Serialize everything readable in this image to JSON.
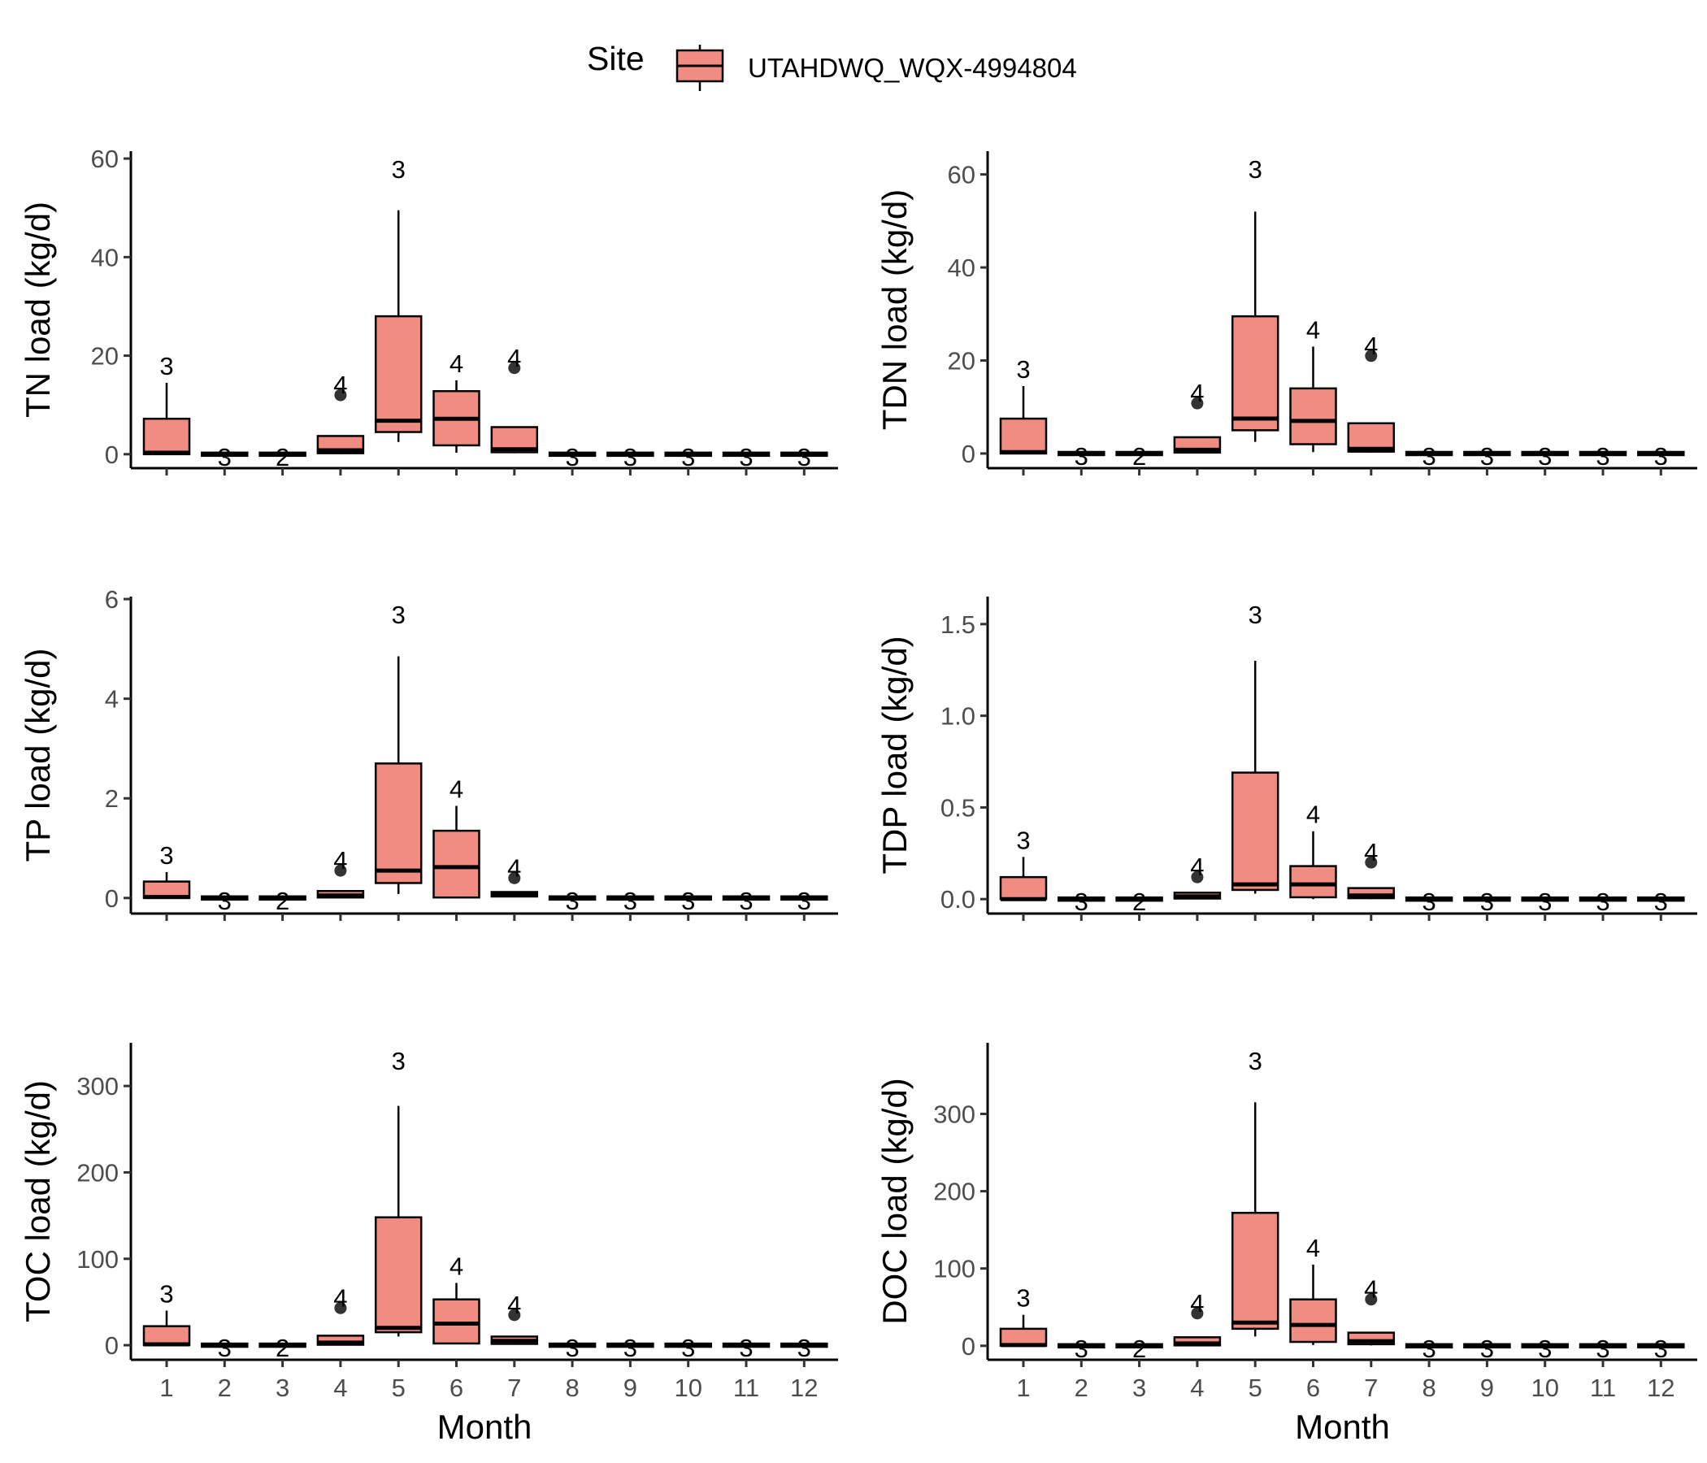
{
  "legend": {
    "title": "Site",
    "entries": [
      {
        "name": "UTAHDWQ_WQX-4994804",
        "color": "#F08C82"
      }
    ]
  },
  "x_title": "Month",
  "chart_data": [
    {
      "type": "box",
      "ylabel": "TN load (kg/d)",
      "xlabel": "",
      "ylim": [
        -2.5,
        61.5
      ],
      "yticks": [
        0,
        20,
        40,
        60
      ],
      "categories": [
        "1",
        "2",
        "3",
        "4",
        "5",
        "6",
        "7",
        "8",
        "9",
        "10",
        "11",
        "12"
      ],
      "boxes": [
        {
          "x": "1",
          "low": 0,
          "q1": 0,
          "median": 0.3,
          "q3": 7.2,
          "high": 14.5,
          "outliers": [],
          "n": "3"
        },
        {
          "x": "2",
          "low": 0,
          "q1": 0,
          "median": 0,
          "q3": 0,
          "high": 0,
          "outliers": [],
          "n": "3"
        },
        {
          "x": "3",
          "low": 0,
          "q1": 0,
          "median": 0,
          "q3": 0,
          "high": 0,
          "outliers": [],
          "n": "2"
        },
        {
          "x": "4",
          "low": 0,
          "q1": 0.2,
          "median": 0.8,
          "q3": 3.7,
          "high": 3.7,
          "outliers": [
            12
          ],
          "n": "4"
        },
        {
          "x": "5",
          "low": 2.5,
          "q1": 4.5,
          "median": 6.8,
          "q3": 28,
          "high": 49.5,
          "outliers": [],
          "n": "3"
        },
        {
          "x": "6",
          "low": 0.3,
          "q1": 1.8,
          "median": 7.2,
          "q3": 12.8,
          "high": 15,
          "outliers": [],
          "n": "4"
        },
        {
          "x": "7",
          "low": 0.2,
          "q1": 0.4,
          "median": 1,
          "q3": 5.5,
          "high": 5.5,
          "outliers": [
            17.5
          ],
          "n": "4"
        },
        {
          "x": "8",
          "low": 0,
          "q1": 0,
          "median": 0,
          "q3": 0,
          "high": 0,
          "outliers": [],
          "n": "3"
        },
        {
          "x": "9",
          "low": 0,
          "q1": 0,
          "median": 0,
          "q3": 0,
          "high": 0,
          "outliers": [],
          "n": "3"
        },
        {
          "x": "10",
          "low": 0,
          "q1": 0,
          "median": 0,
          "q3": 0,
          "high": 0,
          "outliers": [],
          "n": "3"
        },
        {
          "x": "11",
          "low": 0,
          "q1": 0,
          "median": 0,
          "q3": 0,
          "high": 0,
          "outliers": [],
          "n": "3"
        },
        {
          "x": "12",
          "low": 0,
          "q1": 0,
          "median": 0,
          "q3": 0,
          "high": 0,
          "outliers": [],
          "n": "3"
        }
      ]
    },
    {
      "type": "box",
      "ylabel": "TDN load (kg/d)",
      "xlabel": "",
      "ylim": [
        -2.8,
        65
      ],
      "yticks": [
        0,
        20,
        40,
        60
      ],
      "categories": [
        "1",
        "2",
        "3",
        "4",
        "5",
        "6",
        "7",
        "8",
        "9",
        "10",
        "11",
        "12"
      ],
      "boxes": [
        {
          "x": "1",
          "low": 0,
          "q1": 0,
          "median": 0.3,
          "q3": 7.5,
          "high": 14.5,
          "outliers": [],
          "n": "3"
        },
        {
          "x": "2",
          "low": 0,
          "q1": 0,
          "median": 0,
          "q3": 0,
          "high": 0,
          "outliers": [],
          "n": "3"
        },
        {
          "x": "3",
          "low": 0,
          "q1": 0,
          "median": 0,
          "q3": 0,
          "high": 0,
          "outliers": [],
          "n": "2"
        },
        {
          "x": "4",
          "low": 0,
          "q1": 0.2,
          "median": 0.8,
          "q3": 3.5,
          "high": 3.5,
          "outliers": [
            10.8
          ],
          "n": "4"
        },
        {
          "x": "5",
          "low": 2.5,
          "q1": 5,
          "median": 7.5,
          "q3": 29.5,
          "high": 52,
          "outliers": [],
          "n": "3"
        },
        {
          "x": "6",
          "low": 0.3,
          "q1": 2,
          "median": 7,
          "q3": 14,
          "high": 23,
          "outliers": [],
          "n": "4"
        },
        {
          "x": "7",
          "low": 0.2,
          "q1": 0.4,
          "median": 1,
          "q3": 6.5,
          "high": 6.5,
          "outliers": [
            21
          ],
          "n": "4"
        },
        {
          "x": "8",
          "low": 0,
          "q1": 0,
          "median": 0,
          "q3": 0,
          "high": 0,
          "outliers": [],
          "n": "3"
        },
        {
          "x": "9",
          "low": 0,
          "q1": 0,
          "median": 0,
          "q3": 0,
          "high": 0,
          "outliers": [],
          "n": "3"
        },
        {
          "x": "10",
          "low": 0,
          "q1": 0,
          "median": 0,
          "q3": 0,
          "high": 0,
          "outliers": [],
          "n": "3"
        },
        {
          "x": "11",
          "low": 0,
          "q1": 0,
          "median": 0,
          "q3": 0,
          "high": 0,
          "outliers": [],
          "n": "3"
        },
        {
          "x": "12",
          "low": 0,
          "q1": 0,
          "median": 0,
          "q3": 0,
          "high": 0,
          "outliers": [],
          "n": "3"
        }
      ]
    },
    {
      "type": "box",
      "ylabel": "TP load (kg/d)",
      "xlabel": "",
      "ylim": [
        -0.28,
        6.05
      ],
      "yticks": [
        0,
        2,
        4,
        6
      ],
      "categories": [
        "1",
        "2",
        "3",
        "4",
        "5",
        "6",
        "7",
        "8",
        "9",
        "10",
        "11",
        "12"
      ],
      "boxes": [
        {
          "x": "1",
          "low": 0,
          "q1": 0,
          "median": 0.02,
          "q3": 0.33,
          "high": 0.52,
          "outliers": [],
          "n": "3"
        },
        {
          "x": "2",
          "low": 0,
          "q1": 0,
          "median": 0,
          "q3": 0,
          "high": 0,
          "outliers": [],
          "n": "3"
        },
        {
          "x": "3",
          "low": 0,
          "q1": 0,
          "median": 0,
          "q3": 0,
          "high": 0,
          "outliers": [],
          "n": "2"
        },
        {
          "x": "4",
          "low": 0,
          "q1": 0.01,
          "median": 0.05,
          "q3": 0.14,
          "high": 0.14,
          "outliers": [
            0.55
          ],
          "n": "4"
        },
        {
          "x": "5",
          "low": 0.08,
          "q1": 0.3,
          "median": 0.55,
          "q3": 2.7,
          "high": 4.85,
          "outliers": [],
          "n": "3"
        },
        {
          "x": "6",
          "low": 0,
          "q1": 0.01,
          "median": 0.62,
          "q3": 1.35,
          "high": 1.85,
          "outliers": [],
          "n": "4"
        },
        {
          "x": "7",
          "low": 0.02,
          "q1": 0.03,
          "median": 0.07,
          "q3": 0.12,
          "high": 0.12,
          "outliers": [
            0.4
          ],
          "n": "4"
        },
        {
          "x": "8",
          "low": 0,
          "q1": 0,
          "median": 0,
          "q3": 0,
          "high": 0,
          "outliers": [],
          "n": "3"
        },
        {
          "x": "9",
          "low": 0,
          "q1": 0,
          "median": 0,
          "q3": 0,
          "high": 0,
          "outliers": [],
          "n": "3"
        },
        {
          "x": "10",
          "low": 0,
          "q1": 0,
          "median": 0,
          "q3": 0,
          "high": 0,
          "outliers": [],
          "n": "3"
        },
        {
          "x": "11",
          "low": 0,
          "q1": 0,
          "median": 0,
          "q3": 0,
          "high": 0,
          "outliers": [],
          "n": "3"
        },
        {
          "x": "12",
          "low": 0,
          "q1": 0,
          "median": 0,
          "q3": 0,
          "high": 0,
          "outliers": [],
          "n": "3"
        }
      ]
    },
    {
      "type": "box",
      "ylabel": "TDP load (kg/d)",
      "xlabel": "",
      "ylim": [
        -0.07,
        1.65
      ],
      "yticks": [
        0.0,
        0.5,
        1.0,
        1.5
      ],
      "ytick_decimals": 1,
      "categories": [
        "1",
        "2",
        "3",
        "4",
        "5",
        "6",
        "7",
        "8",
        "9",
        "10",
        "11",
        "12"
      ],
      "boxes": [
        {
          "x": "1",
          "low": 0,
          "q1": 0,
          "median": 0,
          "q3": 0.12,
          "high": 0.23,
          "outliers": [],
          "n": "3"
        },
        {
          "x": "2",
          "low": 0,
          "q1": 0,
          "median": 0,
          "q3": 0,
          "high": 0,
          "outliers": [],
          "n": "3"
        },
        {
          "x": "3",
          "low": 0,
          "q1": 0,
          "median": 0,
          "q3": 0,
          "high": 0,
          "outliers": [],
          "n": "2"
        },
        {
          "x": "4",
          "low": 0,
          "q1": 0.003,
          "median": 0.015,
          "q3": 0.035,
          "high": 0.035,
          "outliers": [
            0.12
          ],
          "n": "4"
        },
        {
          "x": "5",
          "low": 0.03,
          "q1": 0.05,
          "median": 0.08,
          "q3": 0.69,
          "high": 1.3,
          "outliers": [],
          "n": "3"
        },
        {
          "x": "6",
          "low": 0,
          "q1": 0.01,
          "median": 0.08,
          "q3": 0.18,
          "high": 0.37,
          "outliers": [],
          "n": "4"
        },
        {
          "x": "7",
          "low": 0,
          "q1": 0.005,
          "median": 0.02,
          "q3": 0.06,
          "high": 0.06,
          "outliers": [
            0.2
          ],
          "n": "4"
        },
        {
          "x": "8",
          "low": 0,
          "q1": 0,
          "median": 0,
          "q3": 0,
          "high": 0,
          "outliers": [],
          "n": "3"
        },
        {
          "x": "9",
          "low": 0,
          "q1": 0,
          "median": 0,
          "q3": 0,
          "high": 0,
          "outliers": [],
          "n": "3"
        },
        {
          "x": "10",
          "low": 0,
          "q1": 0,
          "median": 0,
          "q3": 0,
          "high": 0,
          "outliers": [],
          "n": "3"
        },
        {
          "x": "11",
          "low": 0,
          "q1": 0,
          "median": 0,
          "q3": 0,
          "high": 0,
          "outliers": [],
          "n": "3"
        },
        {
          "x": "12",
          "low": 0,
          "q1": 0,
          "median": 0,
          "q3": 0,
          "high": 0,
          "outliers": [],
          "n": "3"
        }
      ]
    },
    {
      "type": "box",
      "ylabel": "TOC load (kg/d)",
      "xlabel": "Month",
      "ylim": [
        -15,
        350
      ],
      "yticks": [
        0,
        100,
        200,
        300
      ],
      "categories": [
        "1",
        "2",
        "3",
        "4",
        "5",
        "6",
        "7",
        "8",
        "9",
        "10",
        "11",
        "12"
      ],
      "boxes": [
        {
          "x": "1",
          "low": 0,
          "q1": 0,
          "median": 1,
          "q3": 22,
          "high": 40,
          "outliers": [],
          "n": "3"
        },
        {
          "x": "2",
          "low": 0,
          "q1": 0,
          "median": 0,
          "q3": 0,
          "high": 0,
          "outliers": [],
          "n": "3"
        },
        {
          "x": "3",
          "low": 0,
          "q1": 0,
          "median": 0,
          "q3": 0,
          "high": 0,
          "outliers": [],
          "n": "2"
        },
        {
          "x": "4",
          "low": 0,
          "q1": 0.5,
          "median": 3,
          "q3": 11,
          "high": 11,
          "outliers": [
            43
          ],
          "n": "4"
        },
        {
          "x": "5",
          "low": 10,
          "q1": 15,
          "median": 20,
          "q3": 148,
          "high": 277,
          "outliers": [],
          "n": "3"
        },
        {
          "x": "6",
          "low": 1,
          "q1": 2,
          "median": 25,
          "q3": 53,
          "high": 72,
          "outliers": [],
          "n": "4"
        },
        {
          "x": "7",
          "low": 0.5,
          "q1": 1.5,
          "median": 5,
          "q3": 10,
          "high": 10,
          "outliers": [
            35
          ],
          "n": "4"
        },
        {
          "x": "8",
          "low": 0,
          "q1": 0,
          "median": 0,
          "q3": 0,
          "high": 0,
          "outliers": [],
          "n": "3"
        },
        {
          "x": "9",
          "low": 0,
          "q1": 0,
          "median": 0,
          "q3": 0,
          "high": 0,
          "outliers": [],
          "n": "3"
        },
        {
          "x": "10",
          "low": 0,
          "q1": 0,
          "median": 0,
          "q3": 0,
          "high": 0,
          "outliers": [],
          "n": "3"
        },
        {
          "x": "11",
          "low": 0,
          "q1": 0,
          "median": 0,
          "q3": 0,
          "high": 0,
          "outliers": [],
          "n": "3"
        },
        {
          "x": "12",
          "low": 0,
          "q1": 0,
          "median": 0,
          "q3": 0,
          "high": 0,
          "outliers": [],
          "n": "3"
        }
      ]
    },
    {
      "type": "box",
      "ylabel": "DOC load (kg/d)",
      "xlabel": "Month",
      "ylim": [
        -16,
        392
      ],
      "yticks": [
        0,
        100,
        200,
        300
      ],
      "categories": [
        "1",
        "2",
        "3",
        "4",
        "5",
        "6",
        "7",
        "8",
        "9",
        "10",
        "11",
        "12"
      ],
      "boxes": [
        {
          "x": "1",
          "low": 0,
          "q1": 0,
          "median": 1,
          "q3": 22,
          "high": 40,
          "outliers": [],
          "n": "3"
        },
        {
          "x": "2",
          "low": 0,
          "q1": 0,
          "median": 0,
          "q3": 0,
          "high": 0,
          "outliers": [],
          "n": "3"
        },
        {
          "x": "3",
          "low": 0,
          "q1": 0,
          "median": 0,
          "q3": 0,
          "high": 0,
          "outliers": [],
          "n": "2"
        },
        {
          "x": "4",
          "low": 0,
          "q1": 0.5,
          "median": 3,
          "q3": 11,
          "high": 11,
          "outliers": [
            42
          ],
          "n": "4"
        },
        {
          "x": "5",
          "low": 12,
          "q1": 22,
          "median": 30,
          "q3": 172,
          "high": 315,
          "outliers": [],
          "n": "3"
        },
        {
          "x": "6",
          "low": 1,
          "q1": 5,
          "median": 27,
          "q3": 60,
          "high": 105,
          "outliers": [],
          "n": "4"
        },
        {
          "x": "7",
          "low": 0.5,
          "q1": 2,
          "median": 6,
          "q3": 17,
          "high": 17,
          "outliers": [
            60
          ],
          "n": "4"
        },
        {
          "x": "8",
          "low": 0,
          "q1": 0,
          "median": 0,
          "q3": 0,
          "high": 0,
          "outliers": [],
          "n": "3"
        },
        {
          "x": "9",
          "low": 0,
          "q1": 0,
          "median": 0,
          "q3": 0,
          "high": 0,
          "outliers": [],
          "n": "3"
        },
        {
          "x": "10",
          "low": 0,
          "q1": 0,
          "median": 0,
          "q3": 0,
          "high": 0,
          "outliers": [],
          "n": "3"
        },
        {
          "x": "11",
          "low": 0,
          "q1": 0,
          "median": 0,
          "q3": 0,
          "high": 0,
          "outliers": [],
          "n": "3"
        },
        {
          "x": "12",
          "low": 0,
          "q1": 0,
          "median": 0,
          "q3": 0,
          "high": 0,
          "outliers": [],
          "n": "3"
        }
      ]
    }
  ]
}
